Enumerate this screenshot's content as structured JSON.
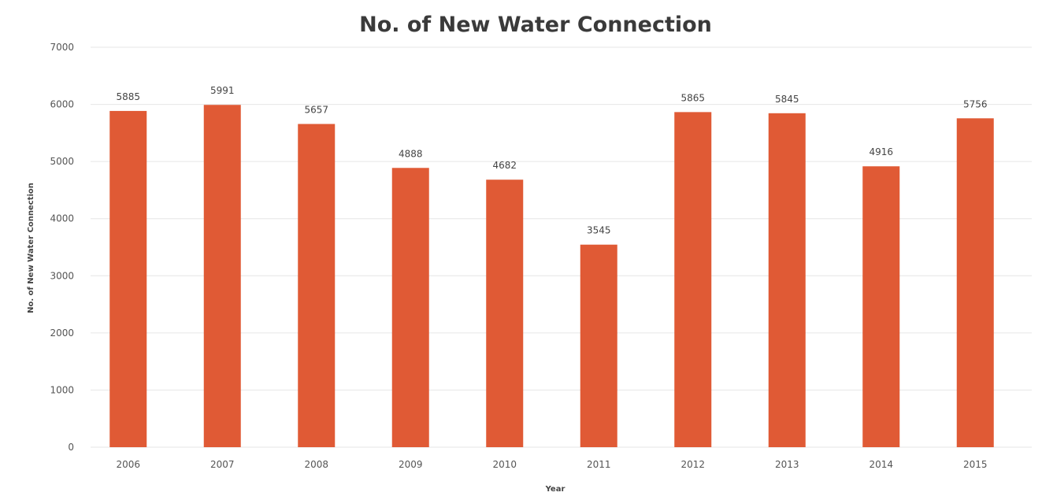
{
  "chart_data": {
    "type": "bar",
    "title": "No. of New Water Connection",
    "xlabel": "Year",
    "ylabel": "No. of New Water Connection",
    "categories": [
      "2006",
      "2007",
      "2008",
      "2009",
      "2010",
      "2011",
      "2012",
      "2013",
      "2014",
      "2015"
    ],
    "values": [
      5885,
      5991,
      5657,
      4888,
      4682,
      3545,
      5865,
      5845,
      4916,
      5756
    ],
    "data_labels": [
      "5885",
      "5991",
      "5657",
      "4888",
      "4682",
      "3545",
      "5865",
      "5845",
      "4916",
      "5756"
    ],
    "ylim": [
      0,
      7000
    ],
    "yticks": [
      "0",
      "1000",
      "2000",
      "3000",
      "4000",
      "5000",
      "6000",
      "7000"
    ],
    "grid": true,
    "legend": "none",
    "bar_color": "#e05a35",
    "grid_color": "#e6e6e6"
  }
}
